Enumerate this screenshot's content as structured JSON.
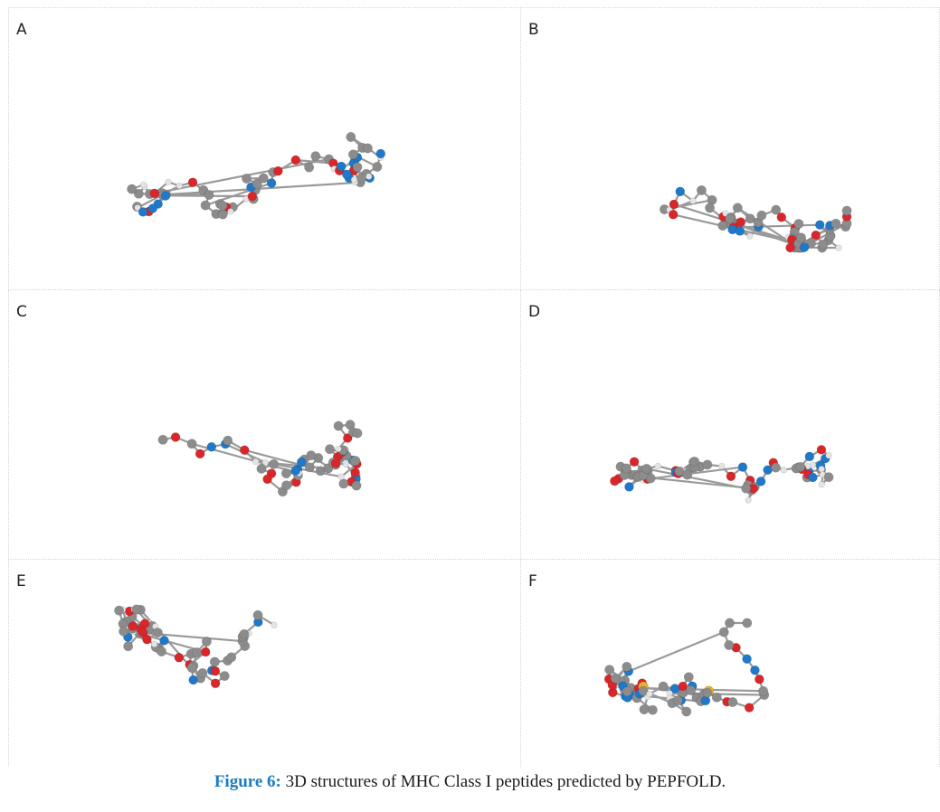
{
  "panels": [
    {
      "label": "A",
      "molecule": "peptide-structure-a"
    },
    {
      "label": "B",
      "molecule": "peptide-structure-b"
    },
    {
      "label": "C",
      "molecule": "peptide-structure-c"
    },
    {
      "label": "D",
      "molecule": "peptide-structure-d"
    },
    {
      "label": "E",
      "molecule": "peptide-structure-e"
    },
    {
      "label": "F",
      "molecule": "peptide-structure-f"
    }
  ],
  "caption": {
    "figure_label": "Figure 6:",
    "text": " 3D structures of MHC Class I peptides predicted by PEPFOLD."
  },
  "colors": {
    "carbon": "#8c8c8c",
    "hydrogen": "#e4e4e4",
    "nitrogen": "#1f78c8",
    "oxygen": "#d9262a",
    "sulfur": "#e8b030",
    "caption_label": "#1e7bbf"
  }
}
